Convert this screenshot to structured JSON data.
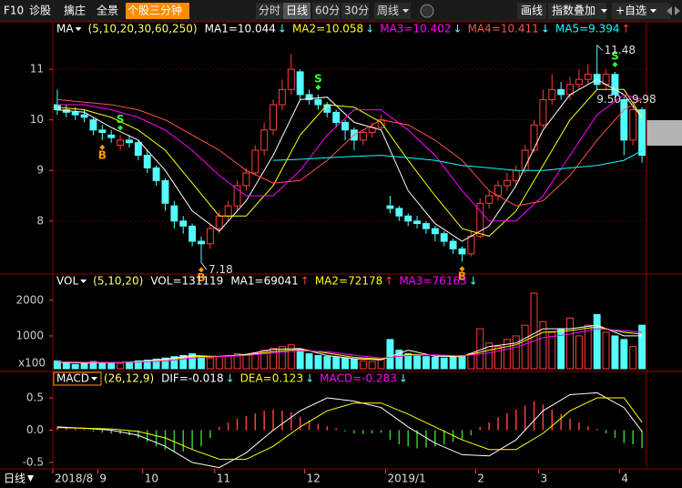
{
  "toolbar": {
    "left": [
      "F10",
      "诊股",
      "擒庄",
      "全景",
      "个股三分钟"
    ],
    "highlighted": 4,
    "periods": [
      "分时",
      "日线",
      "60分",
      "30分",
      "周线"
    ],
    "active_period": 1,
    "right": [
      "画线",
      "指数叠加",
      "+自选"
    ],
    "bottom_left": "日线"
  },
  "chart_data": [
    {
      "type": "candlestick",
      "indicator": "MA",
      "params": "(5,10,20,30,60,250)",
      "readouts": [
        {
          "text": "MA1=10.044",
          "color": "#ffffff",
          "trend": "↓"
        },
        {
          "text": "MA2=10.058",
          "color": "#ffff00",
          "trend": "↓"
        },
        {
          "text": "MA3=10.402",
          "color": "#ff00ff",
          "trend": "↓"
        },
        {
          "text": "MA4=10.411",
          "color": "#ff5050",
          "trend": "↓"
        },
        {
          "text": "MA5=9.394",
          "color": "#00ffff",
          "trend": "↑"
        }
      ],
      "categories": [
        "2018/8",
        null,
        null,
        null,
        null,
        "9",
        null,
        null,
        null,
        null,
        "10",
        null,
        null,
        null,
        null,
        null,
        null,
        null,
        "11",
        null,
        null,
        null,
        null,
        null,
        null,
        null,
        null,
        null,
        "12",
        null,
        null,
        null,
        null,
        null,
        null,
        null,
        null,
        "2019/1",
        null,
        null,
        null,
        null,
        null,
        null,
        null,
        null,
        null,
        "2",
        null,
        null,
        null,
        null,
        null,
        null,
        "3",
        null,
        null,
        null,
        null,
        null,
        null,
        null,
        null,
        "4",
        null,
        null
      ],
      "open": [
        10.3,
        10.2,
        10.15,
        10.1,
        10.0,
        9.8,
        9.7,
        9.5,
        9.6,
        9.55,
        9.3,
        9.05,
        8.8,
        8.3,
        8.0,
        7.9,
        7.6,
        7.55,
        7.85,
        8.1,
        8.3,
        8.7,
        8.95,
        9.4,
        9.8,
        10.3,
        10.6,
        10.95,
        10.5,
        10.4,
        10.3,
        10.15,
        9.95,
        9.8,
        9.6,
        9.75,
        9.85,
        8.3,
        8.25,
        8.1,
        8.0,
        7.95,
        7.85,
        7.75,
        7.6,
        7.45,
        7.35,
        7.7,
        8.35,
        8.5,
        8.7,
        8.8,
        9.0,
        9.4,
        9.9,
        10.4,
        10.6,
        10.5,
        10.7,
        10.8,
        10.9,
        10.7,
        10.9,
        10.4,
        9.6,
        10.2
      ],
      "close": [
        10.2,
        10.15,
        10.1,
        10.05,
        9.8,
        9.75,
        9.65,
        9.6,
        9.55,
        9.3,
        9.05,
        8.8,
        8.35,
        8.0,
        7.9,
        7.6,
        7.55,
        7.85,
        8.1,
        8.3,
        8.7,
        8.95,
        9.4,
        9.8,
        10.3,
        10.6,
        11.0,
        10.5,
        10.4,
        10.3,
        10.15,
        9.95,
        9.8,
        9.6,
        9.75,
        9.85,
        10.0,
        8.25,
        8.1,
        8.0,
        7.95,
        7.85,
        7.75,
        7.6,
        7.45,
        7.35,
        7.7,
        8.35,
        8.5,
        8.7,
        8.8,
        9.0,
        9.4,
        9.9,
        10.4,
        10.6,
        10.5,
        10.7,
        10.8,
        10.9,
        10.7,
        10.9,
        10.5,
        9.6,
        10.2,
        9.3
      ],
      "high": [
        10.6,
        10.3,
        10.25,
        10.2,
        10.05,
        9.9,
        9.8,
        9.7,
        9.7,
        9.6,
        9.4,
        9.1,
        8.85,
        8.4,
        8.1,
        7.95,
        7.7,
        7.95,
        8.2,
        8.4,
        8.8,
        9.05,
        9.5,
        9.95,
        10.4,
        10.8,
        11.3,
        11.0,
        10.6,
        10.5,
        10.35,
        10.2,
        10.0,
        9.85,
        9.8,
        9.95,
        10.1,
        8.5,
        8.3,
        8.15,
        8.1,
        8.0,
        7.9,
        7.8,
        7.65,
        7.5,
        7.8,
        8.45,
        8.6,
        8.8,
        8.95,
        9.1,
        9.5,
        10.0,
        10.6,
        10.9,
        10.75,
        10.85,
        11.0,
        11.1,
        11.48,
        11.0,
        10.95,
        10.45,
        10.3,
        10.25
      ],
      "low": [
        10.1,
        10.05,
        10.0,
        9.95,
        9.7,
        9.6,
        9.55,
        9.4,
        9.45,
        9.2,
        8.95,
        8.7,
        8.2,
        7.85,
        7.75,
        7.5,
        7.18,
        7.45,
        7.75,
        8.0,
        8.2,
        8.6,
        8.9,
        9.3,
        9.7,
        10.2,
        10.5,
        10.4,
        10.3,
        10.2,
        10.05,
        9.85,
        9.6,
        9.4,
        9.5,
        9.65,
        9.8,
        8.15,
        8.0,
        7.9,
        7.85,
        7.75,
        7.6,
        7.5,
        7.35,
        7.2,
        7.3,
        7.65,
        8.25,
        8.4,
        8.6,
        8.7,
        8.95,
        9.35,
        9.85,
        10.3,
        10.4,
        10.4,
        10.6,
        10.7,
        10.6,
        10.6,
        10.4,
        9.3,
        9.5,
        9.15
      ],
      "up_color": "#ff3c3c",
      "down_color": "#54fcfc",
      "lines": [
        {
          "color": "#ffffff",
          "x": [
            0,
            3,
            6,
            9,
            12,
            15,
            18,
            21,
            24,
            27,
            30,
            33,
            36,
            39,
            42,
            45,
            48,
            51,
            54,
            57,
            60,
            63,
            65
          ],
          "values": [
            10.2,
            10.15,
            9.85,
            9.6,
            9.0,
            8.2,
            7.8,
            8.4,
            9.3,
            10.4,
            10.45,
            9.95,
            9.8,
            8.6,
            7.95,
            7.6,
            7.9,
            8.7,
            9.8,
            10.5,
            10.8,
            10.5,
            10.044
          ]
        },
        {
          "color": "#ffff00",
          "x": [
            0,
            3,
            6,
            9,
            12,
            15,
            18,
            21,
            24,
            27,
            30,
            33,
            36,
            39,
            42,
            45,
            48,
            51,
            54,
            57,
            60,
            63,
            65
          ],
          "values": [
            10.25,
            10.2,
            10.05,
            9.8,
            9.4,
            8.75,
            8.1,
            8.1,
            8.7,
            9.7,
            10.3,
            10.25,
            9.95,
            9.2,
            8.5,
            7.85,
            7.7,
            8.2,
            9.1,
            10.0,
            10.6,
            10.6,
            10.058
          ]
        },
        {
          "color": "#ff00ff",
          "x": [
            0,
            3,
            6,
            9,
            12,
            15,
            18,
            21,
            24,
            27,
            30,
            33,
            36,
            39,
            42,
            45,
            48,
            51,
            54,
            57,
            60,
            63,
            65
          ],
          "values": [
            10.3,
            10.3,
            10.2,
            10.05,
            9.8,
            9.4,
            8.9,
            8.5,
            8.5,
            9.0,
            9.7,
            10.2,
            10.2,
            9.8,
            9.3,
            8.6,
            8.0,
            8.0,
            8.5,
            9.3,
            10.1,
            10.5,
            10.402
          ]
        },
        {
          "color": "#ff5050",
          "x": [
            0,
            3,
            6,
            9,
            12,
            15,
            18,
            21,
            24,
            27,
            30,
            33,
            36,
            39,
            42,
            45,
            48,
            51,
            54,
            57,
            60,
            63,
            65
          ],
          "values": [
            10.4,
            10.35,
            10.3,
            10.2,
            10.0,
            9.7,
            9.4,
            9.0,
            8.75,
            8.8,
            9.2,
            9.7,
            10.0,
            9.9,
            9.6,
            9.2,
            8.6,
            8.3,
            8.4,
            8.9,
            9.6,
            10.2,
            10.411
          ]
        },
        {
          "color": "#00ffff",
          "x": [
            0,
            3,
            6,
            9,
            12,
            15,
            18,
            21,
            24,
            27,
            30,
            33,
            36,
            39,
            42,
            45,
            48,
            51,
            54,
            57,
            60,
            63,
            65
          ],
          "values": [
            null,
            null,
            null,
            null,
            null,
            null,
            null,
            null,
            9.2,
            9.22,
            9.25,
            9.28,
            9.3,
            9.25,
            9.2,
            9.1,
            9.05,
            9.0,
            9.0,
            9.05,
            9.1,
            9.2,
            9.394
          ]
        }
      ],
      "signals": [
        {
          "text": "B",
          "at": 5,
          "color": "#ff9900"
        },
        {
          "text": "S",
          "at": 7,
          "color": "#33ff33"
        },
        {
          "text": "B",
          "at": 16,
          "color": "#ff9900"
        },
        {
          "text": "S",
          "at": 29,
          "color": "#33ff33"
        },
        {
          "text": "B",
          "at": 45,
          "color": "#ff9900"
        },
        {
          "text": "S",
          "at": 62,
          "color": "#33ff33"
        }
      ],
      "annotations": [
        {
          "text": "11.48",
          "at": 60,
          "anchor": "high"
        },
        {
          "text": "7.18",
          "at": 16,
          "anchor": "low"
        },
        {
          "text": "9.50 - 9.98",
          "at": 63,
          "anchor": "open"
        }
      ],
      "ylim": [
        6.97,
        11.65
      ],
      "yticks": [
        8,
        9,
        10,
        11
      ],
      "grid": true
    },
    {
      "type": "bar",
      "indicator": "VOL",
      "params": "(5,10,20)",
      "readouts": [
        {
          "text": "VOL=131119",
          "color": "#ffffff",
          "trend": ""
        },
        {
          "text": "MA1=69041",
          "color": "#ffffff",
          "trend": "↑"
        },
        {
          "text": "MA2=72178",
          "color": "#ffff00",
          "trend": "↑"
        },
        {
          "text": "MA3=76163",
          "color": "#ff00ff",
          "trend": "↓"
        }
      ],
      "unit_label": "x100",
      "values": [
        300,
        250,
        200,
        220,
        280,
        260,
        240,
        230,
        250,
        300,
        320,
        350,
        380,
        420,
        450,
        500,
        400,
        380,
        420,
        450,
        500,
        480,
        520,
        600,
        650,
        700,
        750,
        600,
        500,
        450,
        420,
        400,
        380,
        350,
        300,
        280,
        350,
        900,
        600,
        500,
        450,
        420,
        400,
        380,
        420,
        450,
        500,
        1200,
        800,
        700,
        900,
        1000,
        1300,
        2200,
        1400,
        1100,
        1200,
        1500,
        1000,
        1300,
        1600,
        1100,
        1000,
        900,
        700,
        1300
      ],
      "up_color": "#ff3c3c",
      "down_color": "#54fcfc",
      "lines": [
        {
          "color": "#ffffff",
          "x": [
            0,
            3,
            6,
            9,
            12,
            15,
            18,
            21,
            24,
            27,
            30,
            33,
            36,
            39,
            42,
            45,
            48,
            51,
            54,
            57,
            60,
            63,
            65
          ],
          "values": [
            260,
            240,
            250,
            280,
            350,
            450,
            420,
            480,
            620,
            650,
            450,
            360,
            330,
            600,
            430,
            420,
            700,
            800,
            1200,
            1200,
            1300,
            1000,
            1000
          ]
        },
        {
          "color": "#ffff00",
          "x": [
            0,
            3,
            6,
            9,
            12,
            15,
            18,
            21,
            24,
            27,
            30,
            33,
            36,
            39,
            42,
            45,
            48,
            51,
            54,
            57,
            60,
            63,
            65
          ],
          "values": [
            270,
            250,
            250,
            270,
            320,
            420,
            430,
            460,
            560,
            620,
            520,
            400,
            350,
            480,
            460,
            430,
            600,
            750,
            1100,
            1150,
            1250,
            1100,
            1050
          ]
        },
        {
          "color": "#ff00ff",
          "x": [
            0,
            3,
            6,
            9,
            12,
            15,
            18,
            21,
            24,
            27,
            30,
            33,
            36,
            39,
            42,
            45,
            48,
            51,
            54,
            57,
            60,
            63,
            65
          ],
          "values": [
            280,
            260,
            255,
            265,
            300,
            380,
            420,
            450,
            520,
            580,
            560,
            460,
            380,
            450,
            470,
            440,
            520,
            680,
            950,
            1050,
            1200,
            1150,
            1100
          ]
        }
      ],
      "ylim": [
        80,
        2300
      ],
      "yticks": [
        1000,
        2000
      ]
    },
    {
      "type": "macd",
      "indicator": "MACD",
      "params": "(26,12,9)",
      "readouts": [
        {
          "text": "DIF=-0.018",
          "color": "#ffffff",
          "trend": "↓"
        },
        {
          "text": "DEA=0.123",
          "color": "#ffff00",
          "trend": "↓"
        },
        {
          "text": "MACD=-0.283",
          "color": "#ff00ff",
          "trend": "↓"
        }
      ],
      "values": [
        0.05,
        0.04,
        0.03,
        0.02,
        -0.02,
        -0.04,
        -0.05,
        -0.06,
        -0.08,
        -0.12,
        -0.18,
        -0.25,
        -0.3,
        -0.35,
        -0.33,
        -0.3,
        -0.25,
        -0.12,
        0.05,
        0.12,
        0.18,
        0.22,
        0.26,
        0.3,
        0.32,
        0.3,
        0.28,
        0.2,
        0.15,
        0.1,
        0.06,
        0.03,
        -0.02,
        -0.05,
        -0.06,
        -0.05,
        -0.04,
        -0.15,
        -0.22,
        -0.25,
        -0.28,
        -0.27,
        -0.25,
        -0.22,
        -0.18,
        -0.14,
        -0.08,
        0.05,
        0.12,
        0.2,
        0.26,
        0.32,
        0.38,
        0.45,
        0.4,
        0.32,
        0.25,
        0.18,
        0.12,
        0.06,
        0.02,
        -0.05,
        -0.12,
        -0.2,
        -0.22,
        -0.28
      ],
      "positive_color": "#ff3c3c",
      "negative_color": "#33cc33",
      "lines": [
        {
          "color": "#ffffff",
          "x": [
            0,
            3,
            6,
            9,
            12,
            15,
            18,
            21,
            24,
            27,
            30,
            33,
            36,
            39,
            42,
            45,
            48,
            51,
            54,
            57,
            60,
            63,
            65
          ],
          "values": [
            0.05,
            0.03,
            0.0,
            -0.08,
            -0.25,
            -0.5,
            -0.58,
            -0.35,
            0.0,
            0.3,
            0.5,
            0.45,
            0.35,
            0.05,
            -0.2,
            -0.38,
            -0.4,
            -0.15,
            0.3,
            0.55,
            0.58,
            0.35,
            -0.018
          ]
        },
        {
          "color": "#ffff00",
          "x": [
            0,
            3,
            6,
            9,
            12,
            15,
            18,
            21,
            24,
            27,
            30,
            33,
            36,
            39,
            42,
            45,
            48,
            51,
            54,
            57,
            60,
            63,
            65
          ],
          "values": [
            0.04,
            0.03,
            0.02,
            -0.02,
            -0.12,
            -0.3,
            -0.45,
            -0.45,
            -0.25,
            0.05,
            0.3,
            0.42,
            0.42,
            0.25,
            0.05,
            -0.15,
            -0.3,
            -0.3,
            -0.05,
            0.3,
            0.5,
            0.5,
            0.123
          ]
        }
      ],
      "ylim": [
        -0.6,
        0.67
      ],
      "yticks": [
        0.5,
        {
          "value": 0,
          "label": "0.0"
        },
        -0.5
      ]
    }
  ]
}
